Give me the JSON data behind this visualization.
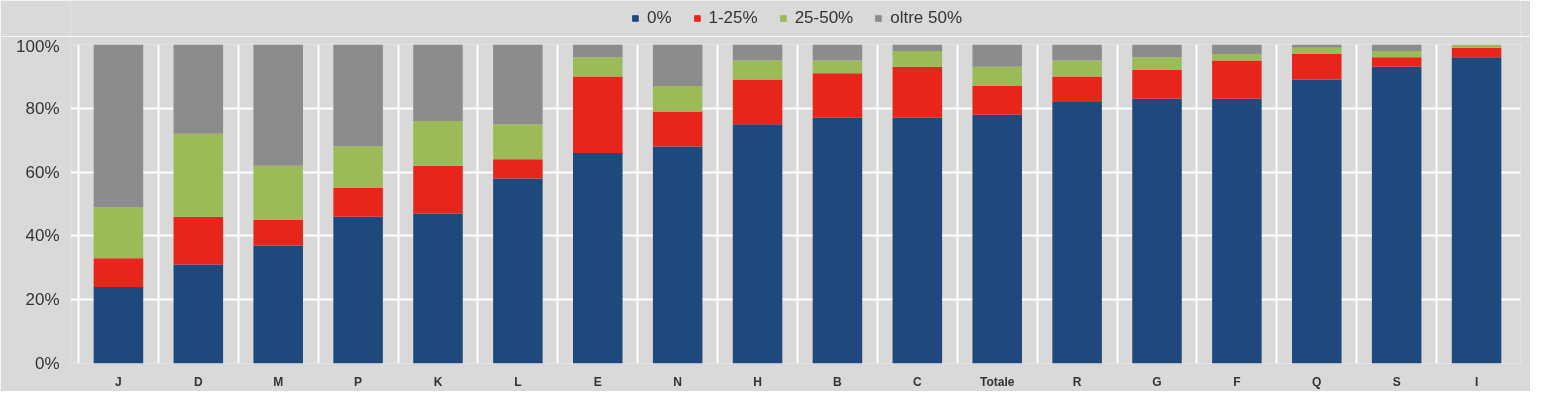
{
  "chart_data": {
    "type": "bar",
    "stacked": true,
    "categories": [
      "J",
      "D",
      "M",
      "P",
      "K",
      "L",
      "E",
      "N",
      "H",
      "B",
      "C",
      "Totale",
      "R",
      "G",
      "F",
      "Q",
      "S",
      "I"
    ],
    "series": [
      {
        "name": "0%",
        "color": "#1f497d",
        "values": [
          24,
          31,
          37,
          46,
          47,
          58,
          66,
          68,
          75,
          77,
          77,
          78,
          82,
          83,
          83,
          89,
          93,
          96
        ]
      },
      {
        "name": "1-25%",
        "color": "#e8251a",
        "values": [
          9,
          15,
          8,
          9,
          15,
          6,
          24,
          11,
          14,
          14,
          16,
          9,
          8,
          9,
          12,
          8,
          3,
          3
        ]
      },
      {
        "name": "25-50%",
        "color": "#9bbb59",
        "values": [
          16,
          26,
          17,
          13,
          14,
          11,
          6,
          8,
          6,
          4,
          5,
          6,
          5,
          4,
          2,
          2,
          2,
          1
        ]
      },
      {
        "name": "oltre 50%",
        "color": "#8c8c8c",
        "values": [
          51,
          28,
          38,
          32,
          24,
          25,
          4,
          13,
          5,
          5,
          2,
          7,
          5,
          4,
          3,
          1,
          2,
          null
        ]
      }
    ],
    "ylim": [
      0,
      100
    ],
    "yticks": [
      {
        "value": 0,
        "label": "0%"
      },
      {
        "value": 20,
        "label": "20%"
      },
      {
        "value": 40,
        "label": "40%"
      },
      {
        "value": 60,
        "label": "60%"
      },
      {
        "value": 80,
        "label": "80%"
      },
      {
        "value": 100,
        "label": "100%"
      }
    ],
    "grid": true,
    "legend": "top"
  }
}
